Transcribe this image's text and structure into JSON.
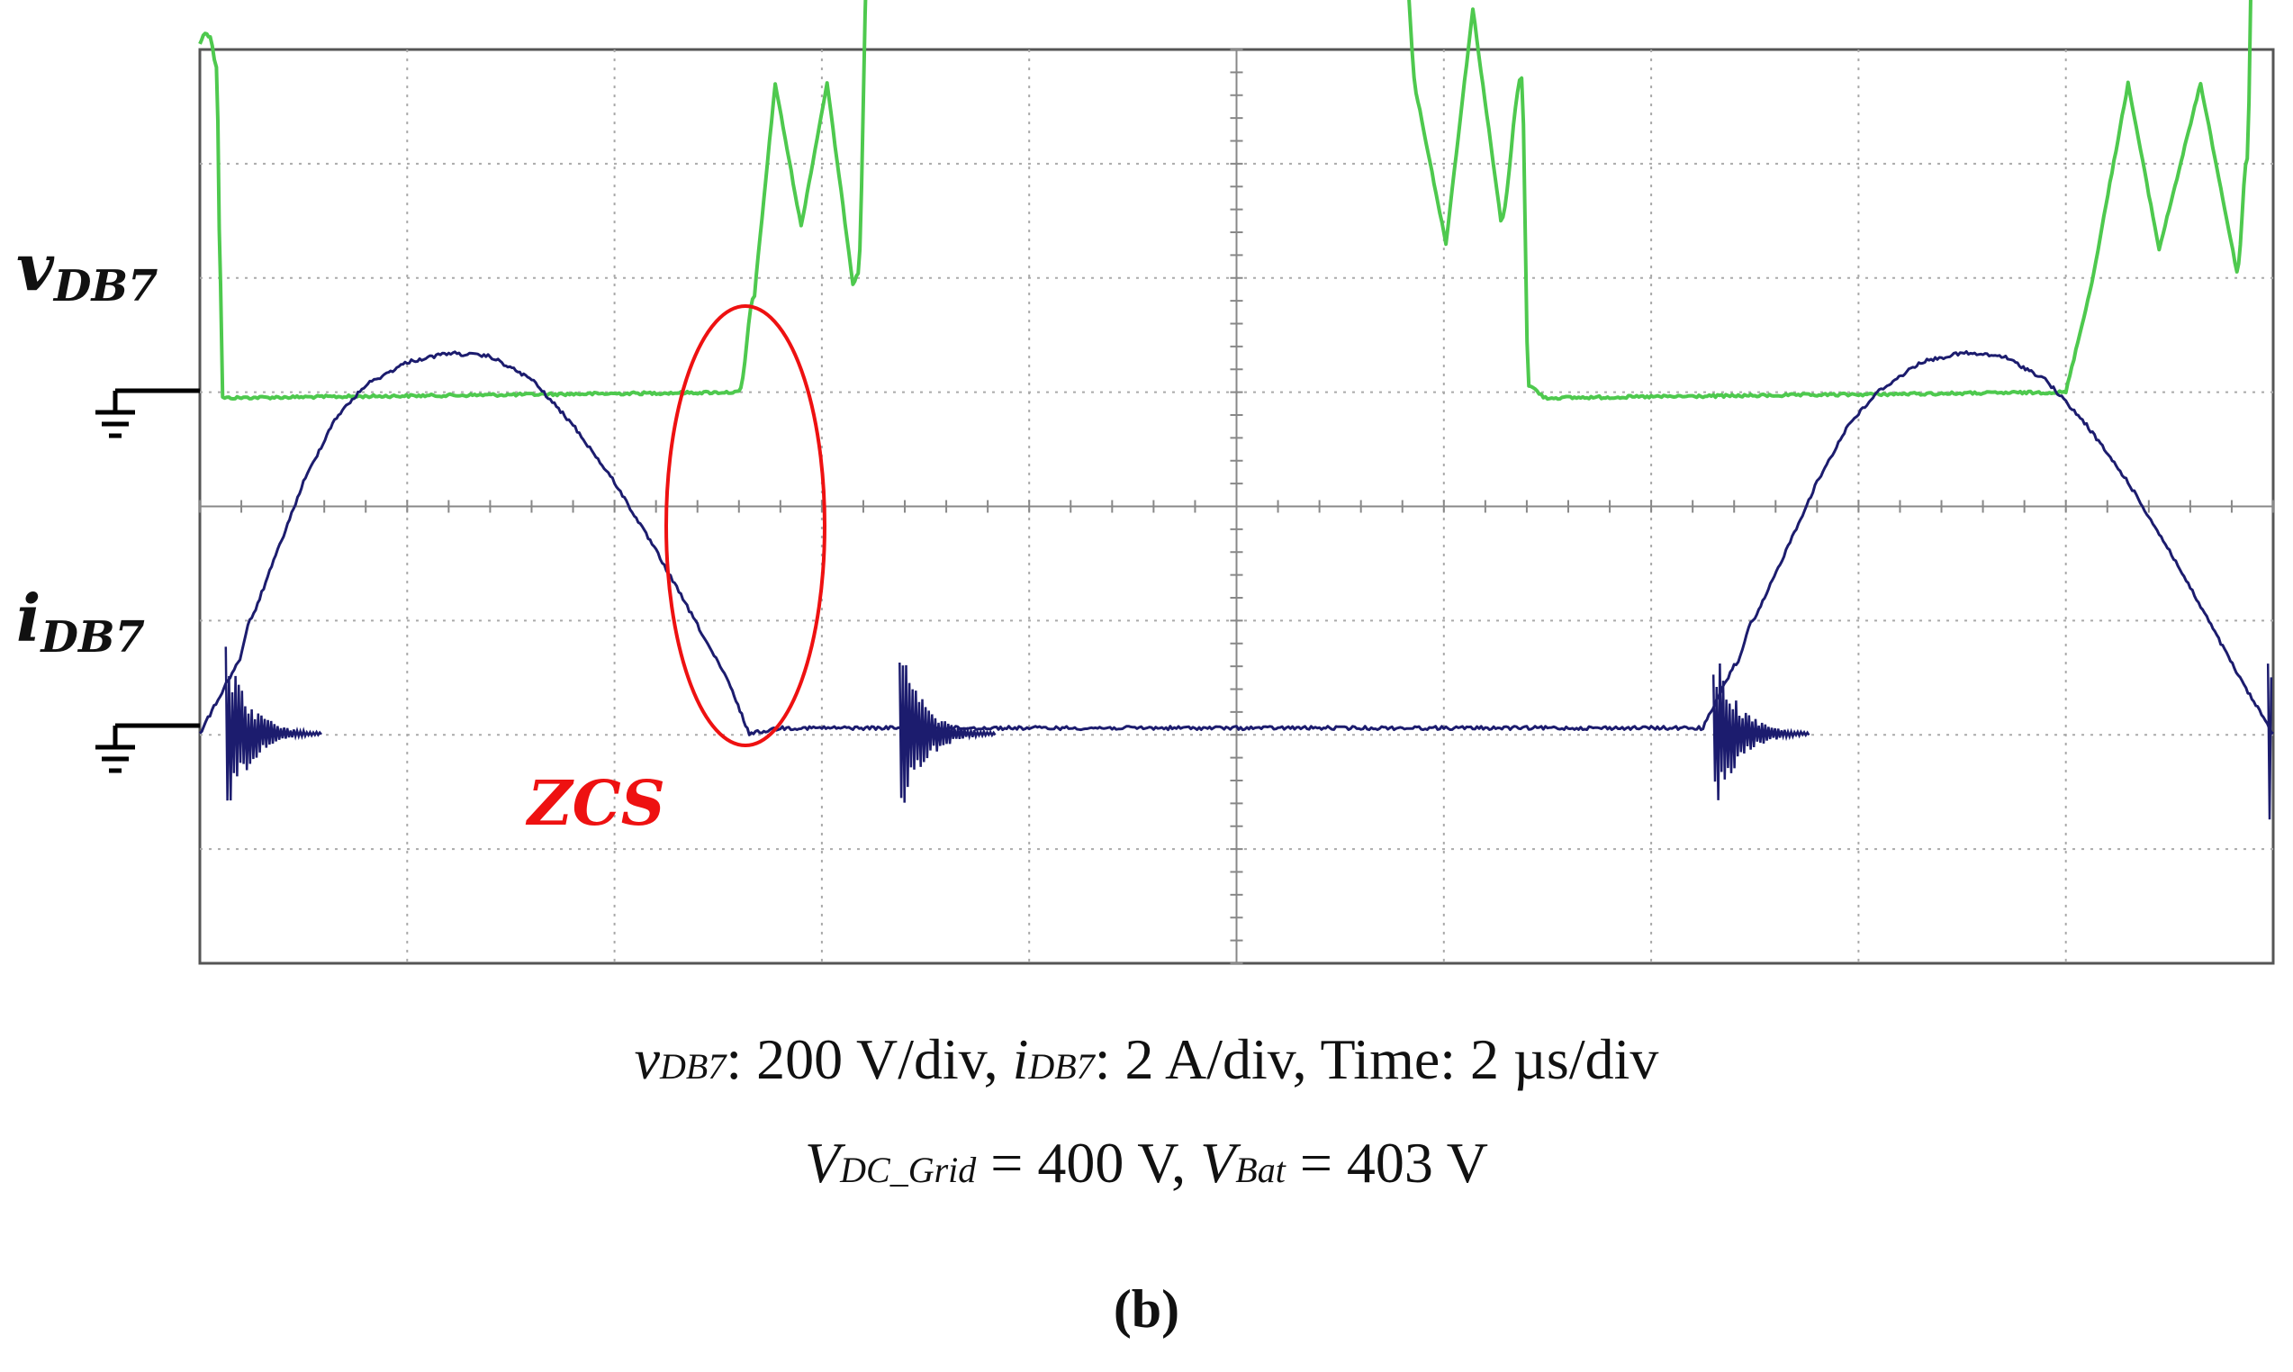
{
  "chart_data": {
    "type": "line",
    "title": "",
    "x": {
      "divisions": 10,
      "unit": "µs",
      "per_div": 2,
      "range": [
        0,
        20
      ]
    },
    "series": [
      {
        "name": "vDB7",
        "label_main": "v",
        "label_sub": "DB7",
        "color": "#4ec94e",
        "scale": "200 V/div",
        "points": [
          [
            0,
            3.1
          ],
          [
            0.05,
            3.2
          ],
          [
            0.1,
            3.15
          ],
          [
            0.16,
            2.9
          ],
          [
            0.2,
            1.0
          ],
          [
            0.22,
            0.0
          ],
          [
            5.2,
            0.05
          ],
          [
            5.35,
            0.9
          ],
          [
            5.55,
            2.75
          ],
          [
            5.8,
            1.5
          ],
          [
            6.05,
            2.75
          ],
          [
            6.3,
            1.0
          ],
          [
            6.35,
            1.1
          ],
          [
            6.45,
            4.1
          ],
          [
            11.6,
            4.05
          ],
          [
            11.75,
            2.6
          ],
          [
            12.02,
            1.35
          ],
          [
            12.28,
            3.4
          ],
          [
            12.55,
            1.55
          ],
          [
            12.75,
            2.8
          ],
          [
            12.82,
            0.1
          ],
          [
            13.0,
            0.0
          ],
          [
            18.0,
            0.05
          ],
          [
            18.25,
            1.0
          ],
          [
            18.6,
            2.75
          ],
          [
            18.9,
            1.3
          ],
          [
            19.3,
            2.75
          ],
          [
            19.65,
            1.1
          ],
          [
            19.75,
            2.1
          ],
          [
            19.8,
            4.05
          ],
          [
            19.85,
            4.2
          ],
          [
            20,
            4.2
          ]
        ]
      },
      {
        "name": "iDB7",
        "label_main": "i",
        "label_sub": "DB7",
        "color": "#1c1c6e",
        "scale": "2 A/div",
        "points": [
          [
            0,
            0
          ],
          [
            0.35,
            0.6
          ],
          [
            0.5,
            1.0
          ],
          [
            0.75,
            1.6
          ],
          [
            1.0,
            2.2
          ],
          [
            1.3,
            2.75
          ],
          [
            1.6,
            3.05
          ],
          [
            2.0,
            3.25
          ],
          [
            2.4,
            3.33
          ],
          [
            2.8,
            3.3
          ],
          [
            3.2,
            3.1
          ],
          [
            3.6,
            2.7
          ],
          [
            4.0,
            2.2
          ],
          [
            4.4,
            1.6
          ],
          [
            4.8,
            0.95
          ],
          [
            5.1,
            0.45
          ],
          [
            5.3,
            0.0
          ],
          [
            5.6,
            0.05
          ],
          [
            6.6,
            0.05
          ],
          [
            8,
            0.05
          ],
          [
            10,
            0.05
          ],
          [
            13,
            0.05
          ],
          [
            14.5,
            0.05
          ],
          [
            14.8,
            0.6
          ],
          [
            15.0,
            1.0
          ],
          [
            15.3,
            1.6
          ],
          [
            15.6,
            2.2
          ],
          [
            15.9,
            2.7
          ],
          [
            16.2,
            3.0
          ],
          [
            16.6,
            3.25
          ],
          [
            17.0,
            3.33
          ],
          [
            17.4,
            3.3
          ],
          [
            17.8,
            3.1
          ],
          [
            18.2,
            2.7
          ],
          [
            18.6,
            2.2
          ],
          [
            19.0,
            1.6
          ],
          [
            19.4,
            0.95
          ],
          [
            19.7,
            0.45
          ],
          [
            20.0,
            0.0
          ]
        ],
        "ringing_events": [
          0.25,
          6.75,
          14.6,
          19.95
        ]
      }
    ],
    "annotations": [
      {
        "text": "ZCS",
        "color": "#ee1111",
        "time": 5.2
      }
    ]
  },
  "caption": {
    "line1_prefix_v": "v",
    "line1_sub_v": "DB7",
    "line1_part2": ": 200 V/div, ",
    "line1_prefix_i": "i",
    "line1_sub_i": "DB7",
    "line1_part3": ": 2 A/div, Time: 2 µs/div",
    "line2_v1": "V",
    "line2_sub1": "DC_Grid",
    "line2_part2": " = 400 V, ",
    "line2_v2": "V",
    "line2_sub2": "Bat",
    "line2_part3": " = 403 V",
    "figure_label": "(b)"
  },
  "colors": {
    "grid": "#aaaaaa",
    "frame": "#555555",
    "ground": "#000000"
  }
}
